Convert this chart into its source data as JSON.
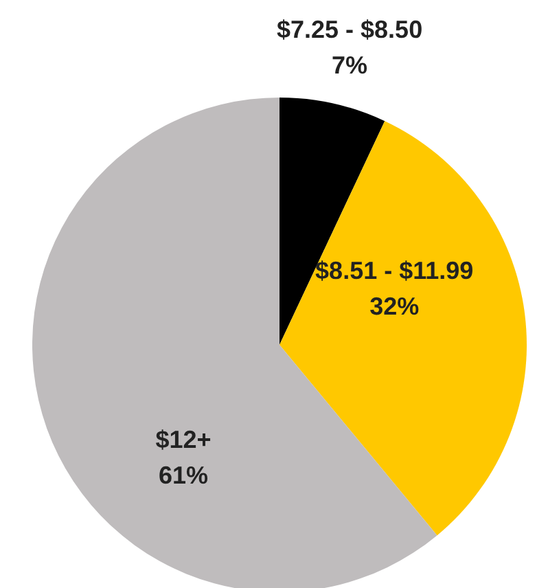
{
  "chart_data": {
    "type": "pie",
    "categories": [
      "$7.25 - $8.50",
      "$8.51 - $11.99",
      "$12+"
    ],
    "values": [
      7,
      32,
      61
    ],
    "colors": [
      "#000000",
      "#ffc800",
      "#bfbcbd"
    ],
    "value_labels": [
      "7%",
      "32%",
      "61%"
    ],
    "legend": false
  }
}
